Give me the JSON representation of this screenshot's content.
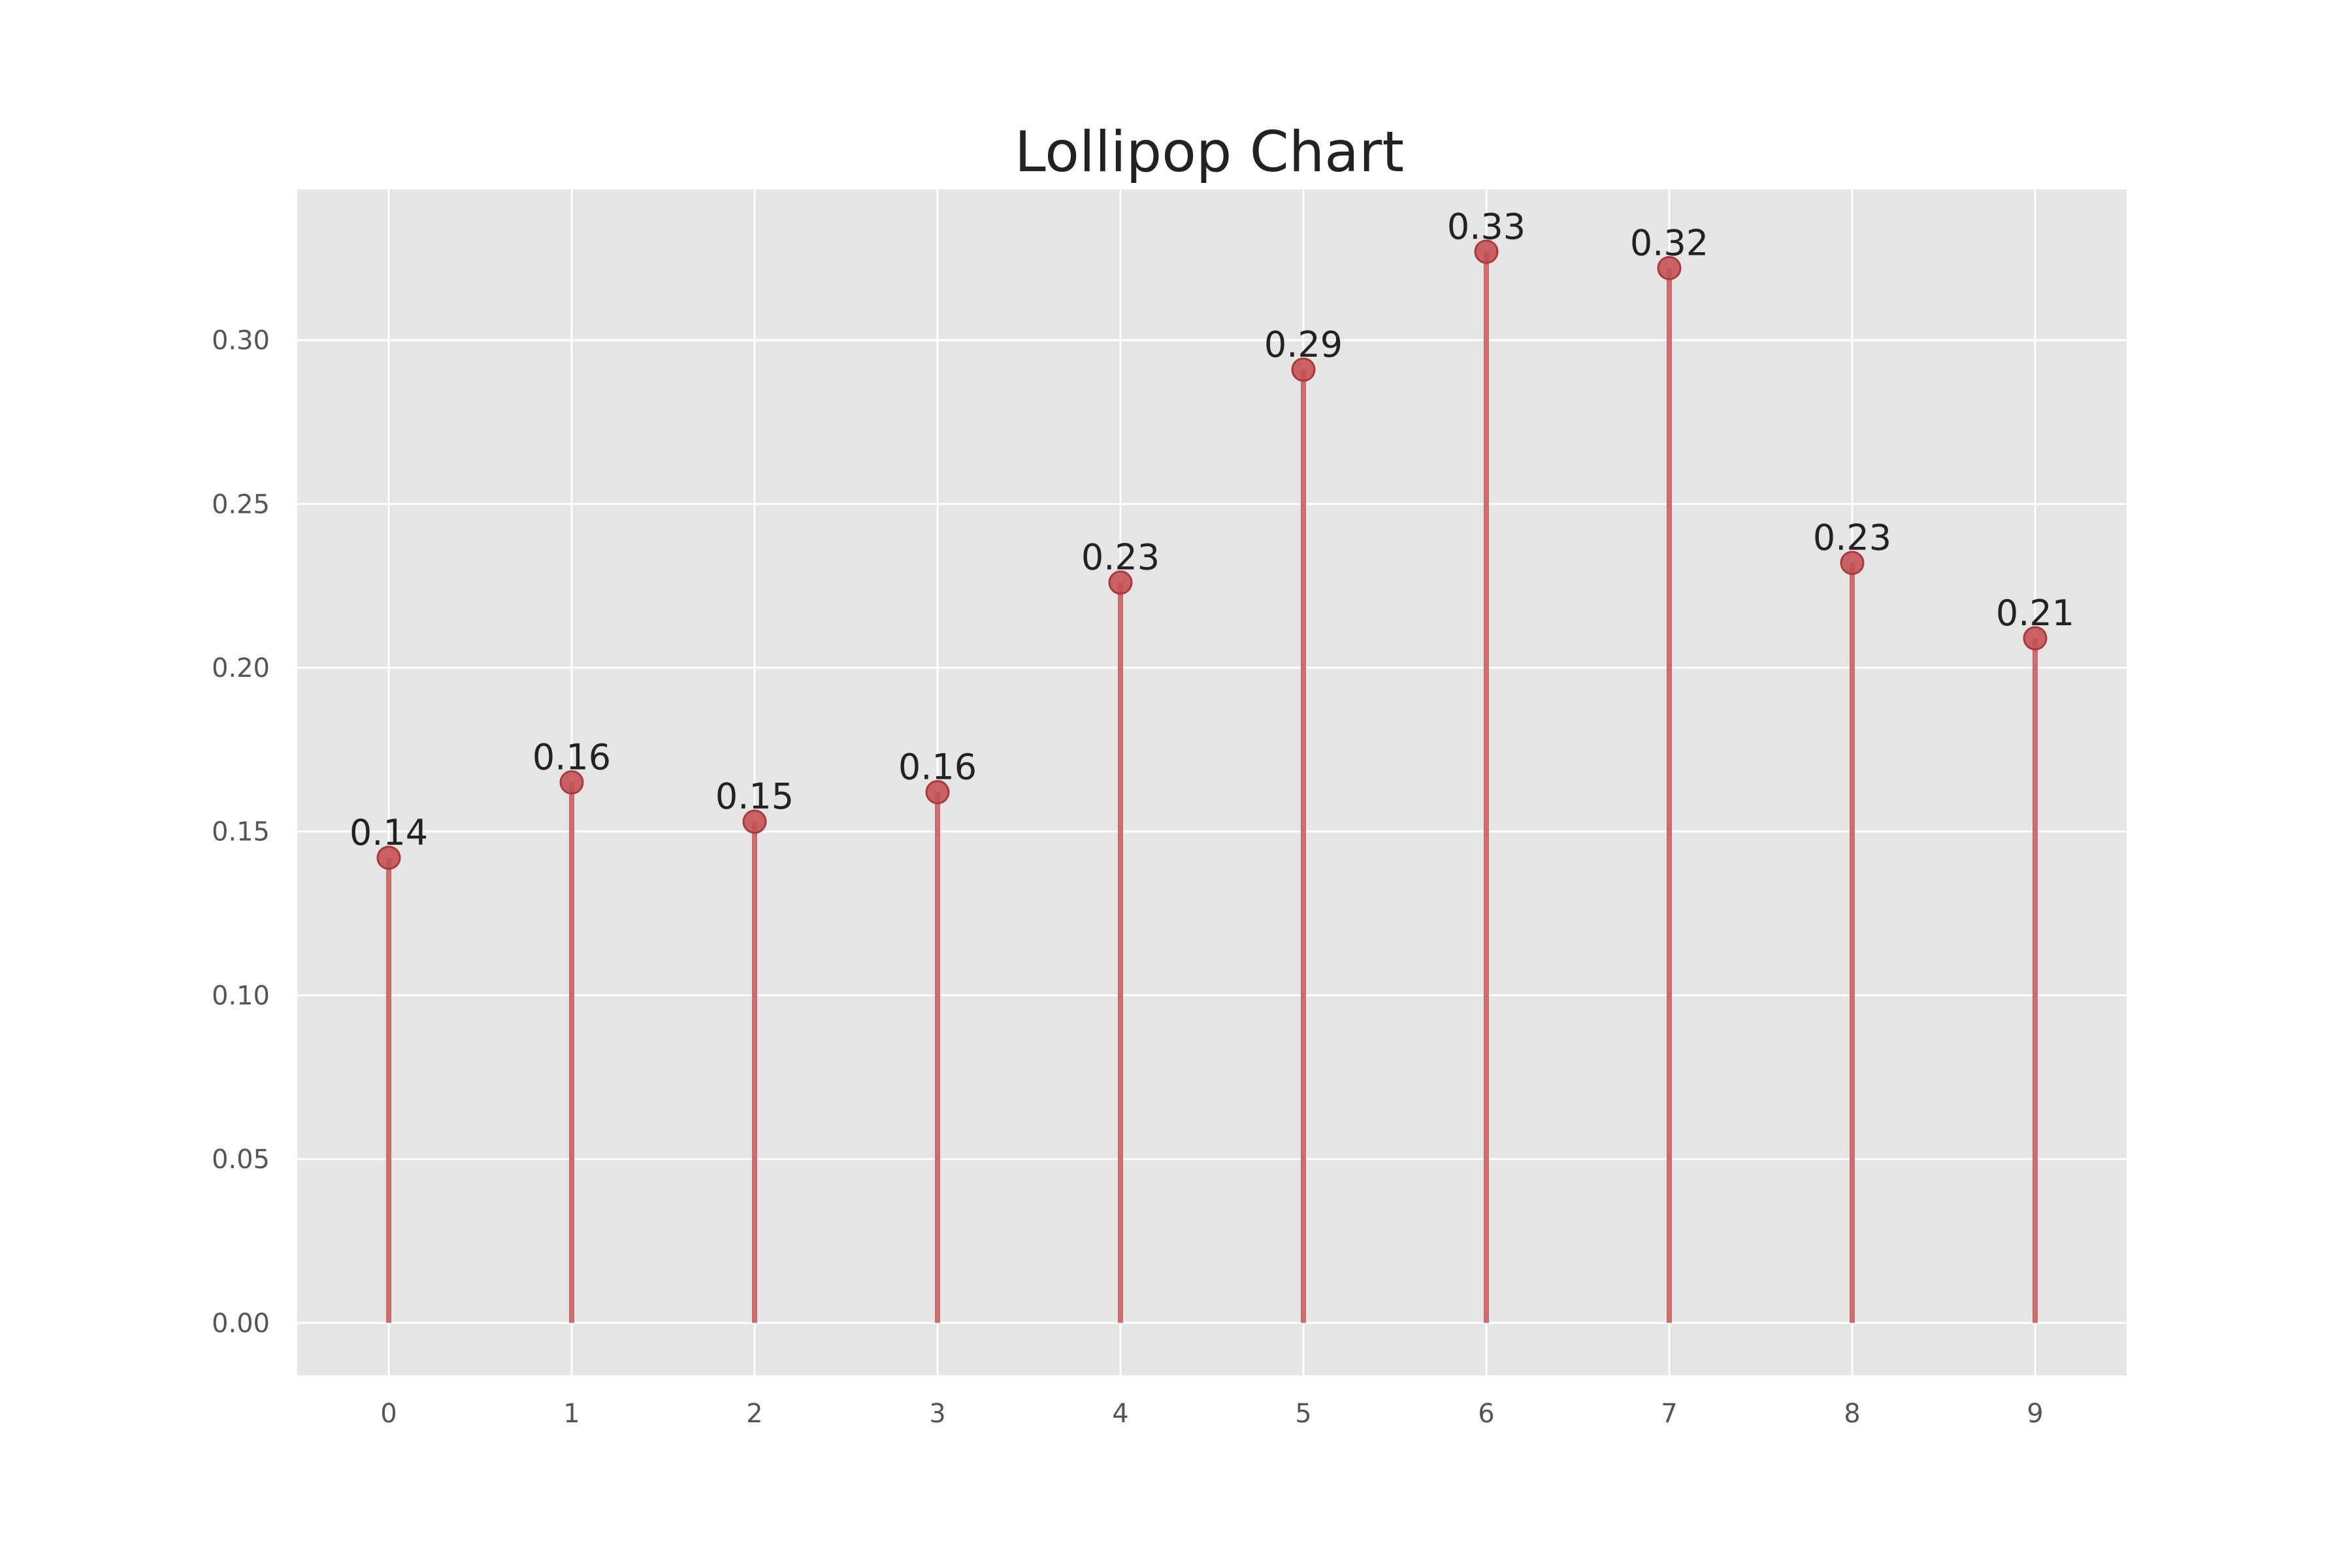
{
  "chart_data": {
    "type": "lollipop",
    "title": "Lollipop Chart",
    "xlabel": "",
    "ylabel": "",
    "categories": [
      "0",
      "1",
      "2",
      "3",
      "4",
      "5",
      "6",
      "7",
      "8",
      "9"
    ],
    "values": [
      0.142,
      0.165,
      0.153,
      0.162,
      0.226,
      0.291,
      0.327,
      0.322,
      0.232,
      0.209
    ],
    "data_labels": [
      "0.14",
      "0.16",
      "0.15",
      "0.16",
      "0.23",
      "0.29",
      "0.33",
      "0.32",
      "0.23",
      "0.21"
    ],
    "x_ticks": [
      "0",
      "1",
      "2",
      "3",
      "4",
      "5",
      "6",
      "7",
      "8",
      "9"
    ],
    "y_ticks": [
      0.0,
      0.05,
      0.1,
      0.15,
      0.2,
      0.25,
      0.3
    ],
    "y_tick_labels": [
      "0.00",
      "0.05",
      "0.10",
      "0.15",
      "0.20",
      "0.25",
      "0.30"
    ],
    "xlim": [
      -0.5,
      9.5
    ],
    "ylim": [
      -0.016,
      0.346
    ],
    "grid": true,
    "legend": "none",
    "colors": {
      "stem": "#c44e52",
      "marker": "#c44e52",
      "plot_background": "#e5e5e5",
      "grid": "#ffffff",
      "figure_background": "#ffffff"
    }
  }
}
